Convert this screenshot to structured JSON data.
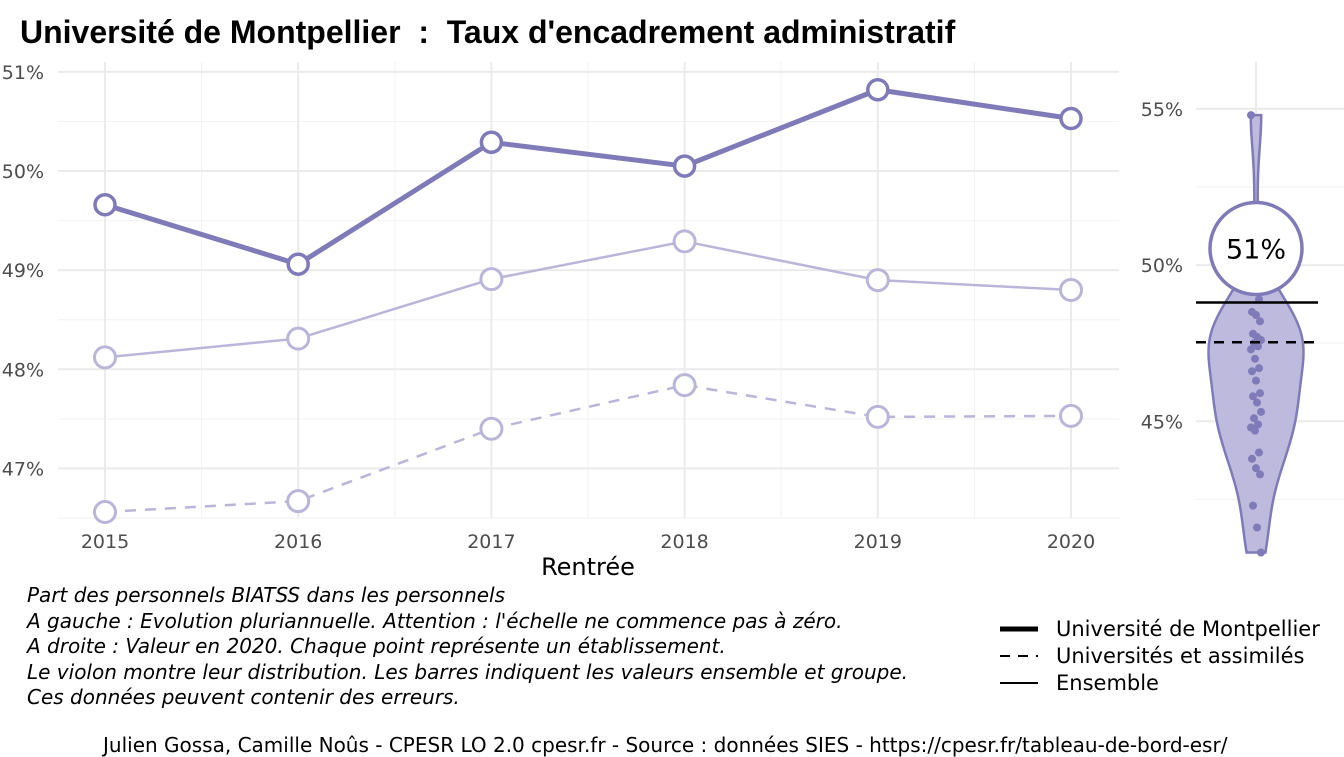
{
  "title": "Université de Montpellier  :  Taux d'encadrement administratif",
  "chart_data": [
    {
      "type": "line",
      "xlabel": "Rentrée",
      "x": [
        2015,
        2016,
        2017,
        2018,
        2019,
        2020
      ],
      "ylim": [
        46.5,
        51.1
      ],
      "yticks": [
        47,
        48,
        49,
        50,
        51
      ],
      "ytick_labels": [
        "47%",
        "48%",
        "49%",
        "50%",
        "51%"
      ],
      "grid": true,
      "series": [
        {
          "name": "Université de Montpellier",
          "values": [
            49.66,
            49.06,
            50.29,
            50.05,
            50.82,
            50.53
          ],
          "style": "thick",
          "color": "#7F7BB8"
        },
        {
          "name": "Ensemble",
          "values": [
            48.12,
            48.31,
            48.91,
            49.29,
            48.9,
            48.8
          ],
          "style": "thin",
          "color": "#B9B6DA"
        },
        {
          "name": "Universités et assimilés",
          "values": [
            46.56,
            46.67,
            47.4,
            47.84,
            47.52,
            47.53
          ],
          "style": "dashed",
          "color": "#B9B6DA"
        }
      ]
    },
    {
      "type": "violin",
      "ylim": [
        41.2,
        56.5
      ],
      "yticks": [
        45,
        50,
        55
      ],
      "ytick_labels": [
        "45%",
        "50%",
        "55%"
      ],
      "highlight_value": 50.53,
      "highlight_label": "51%",
      "ensemble_value": 48.8,
      "group_value": 47.53,
      "points": [
        54.8,
        49.3,
        48.9,
        48.5,
        48.4,
        48.2,
        47.8,
        47.7,
        47.6,
        47.5,
        47.4,
        47.3,
        47.0,
        46.7,
        46.6,
        46.3,
        45.9,
        45.8,
        45.6,
        45.3,
        45.1,
        44.9,
        44.8,
        44.7,
        44.0,
        43.8,
        43.5,
        43.3,
        42.3,
        41.6,
        40.8
      ],
      "color": "#7F7BB8"
    }
  ],
  "notes": [
    "Part des personnels BIATSS dans les personnels",
    "A gauche : Evolution pluriannuelle. Attention : l'échelle ne commence pas à zéro.",
    "A droite : Valeur en 2020. Chaque point représente un établissement.",
    "Le violon montre leur distribution. Les barres indiquent les valeurs ensemble et groupe.",
    "Ces données peuvent contenir des erreurs."
  ],
  "legend": [
    {
      "label": "Université de Montpellier",
      "style": "thick"
    },
    {
      "label": "Universités et assimilés",
      "style": "dashed"
    },
    {
      "label": "Ensemble",
      "style": "thin"
    }
  ],
  "caption": "Julien Gossa, Camille Noûs - CPESR LO 2.0 cpesr.fr - Source : données SIES - https://cpesr.fr/tableau-de-bord-esr/"
}
